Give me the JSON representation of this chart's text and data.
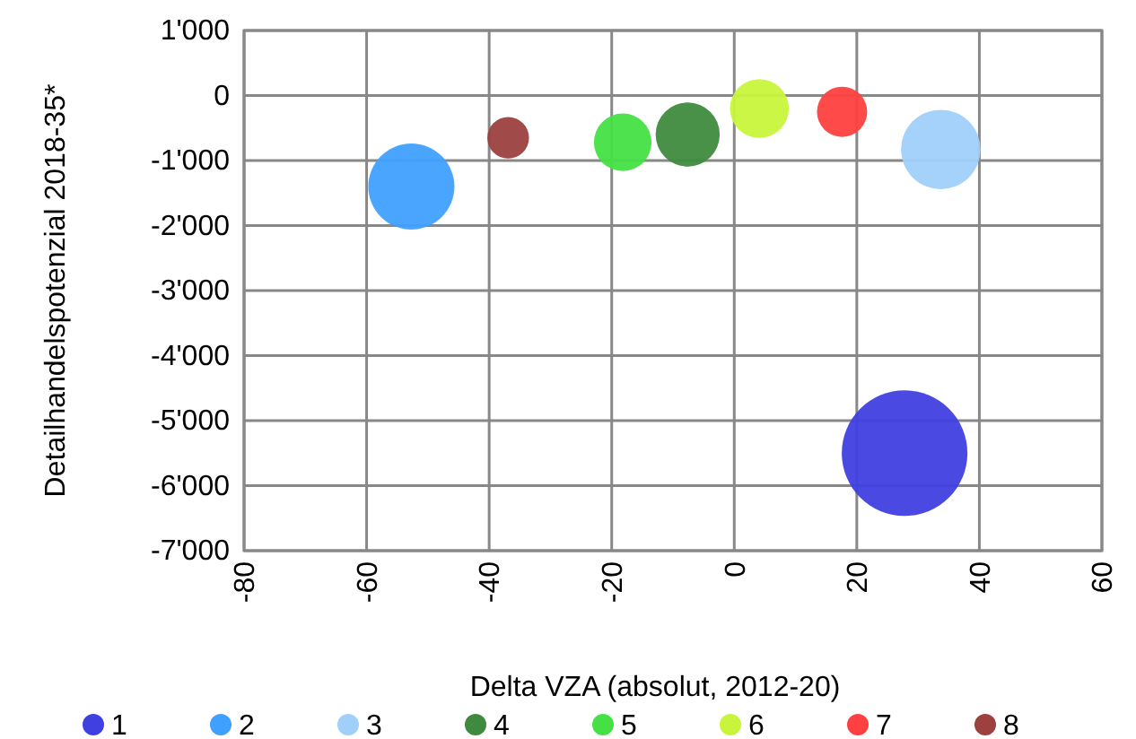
{
  "chart_data": {
    "type": "bubble",
    "xlabel": "Delta VZA (absolut, 2012-20)",
    "ylabel": "Detailhandelspotenzial 2018-35*",
    "xlim": [
      -80,
      60
    ],
    "xticks": [
      -80,
      -60,
      -40,
      -20,
      0,
      20,
      40,
      60
    ],
    "ylim": [
      -7000,
      1000
    ],
    "yticks": [
      {
        "value": -7000,
        "label": "-7'000"
      },
      {
        "value": -6000,
        "label": "-6'000"
      },
      {
        "value": -5000,
        "label": "-5'000"
      },
      {
        "value": -4000,
        "label": "-4'000"
      },
      {
        "value": -3000,
        "label": "-3'000"
      },
      {
        "value": -2000,
        "label": "-2'000"
      },
      {
        "value": -1000,
        "label": "-1'000"
      },
      {
        "value": 0,
        "label": "0"
      },
      {
        "value": 1000,
        "label": "1'000"
      }
    ],
    "grid": true,
    "legend": "bottom",
    "series": [
      {
        "name": "1",
        "color": "#4040e0",
        "x": [
          27.8
        ],
        "values": [
          -5500
        ],
        "sizes": [
          1
        ]
      },
      {
        "name": "2",
        "color": "#40a0ff",
        "x": [
          -52.7
        ],
        "values": [
          -1400
        ],
        "sizes": [
          0.47
        ]
      },
      {
        "name": "3",
        "color": "#a0d0fa",
        "x": [
          33.7
        ],
        "values": [
          -830
        ],
        "sizes": [
          0.4
        ]
      },
      {
        "name": "4",
        "color": "#3f8a3f",
        "x": [
          -7.6
        ],
        "values": [
          -600
        ],
        "sizes": [
          0.26
        ]
      },
      {
        "name": "5",
        "color": "#44e044",
        "x": [
          -18.2
        ],
        "values": [
          -720
        ],
        "sizes": [
          0.21
        ]
      },
      {
        "name": "6",
        "color": "#c8f53c",
        "x": [
          4.1
        ],
        "values": [
          -200
        ],
        "sizes": [
          0.22
        ]
      },
      {
        "name": "7",
        "color": "#ff4040",
        "x": [
          17.6
        ],
        "values": [
          -250
        ],
        "sizes": [
          0.16
        ]
      },
      {
        "name": "8",
        "color": "#9c4040",
        "x": [
          -36.9
        ],
        "values": [
          -650
        ],
        "sizes": [
          0.11
        ]
      }
    ]
  }
}
